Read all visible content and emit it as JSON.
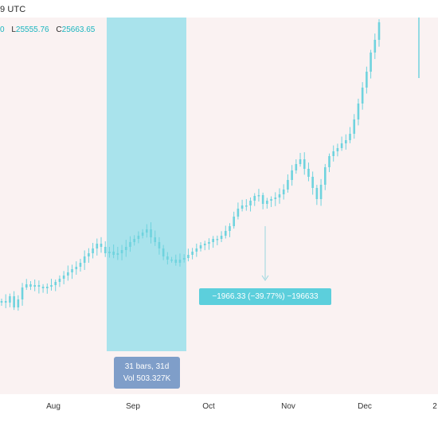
{
  "header": {
    "time_fragment": "9 UTC",
    "ohlc": [
      {
        "key": "",
        "value": "0"
      },
      {
        "key": "L",
        "value": "25555.76"
      },
      {
        "key": "C",
        "value": "25663.65"
      }
    ]
  },
  "tool": {
    "measure_label": "−1966.33 (−39.77%) −196633",
    "range_bars": "31 bars, 31d",
    "range_vol": "Vol 503.327K"
  },
  "colors": {
    "accent": "#1ab5bf",
    "candle": "#6fd3de",
    "selection": "#a9e3ec",
    "background": "#faf2f2"
  },
  "xaxis": {
    "labels": [
      "Aug",
      "Sep",
      "Oct",
      "Nov",
      "Dec",
      "2"
    ]
  },
  "chart_data": {
    "type": "candlestick",
    "x_labels": [
      "Aug",
      "Sep",
      "Oct",
      "Nov",
      "Dec",
      "2"
    ],
    "close_trend": [
      378,
      380,
      372,
      386,
      376,
      361,
      357,
      360,
      358,
      360,
      362,
      360,
      358,
      354,
      350,
      346,
      342,
      338,
      335,
      330,
      322,
      318,
      312,
      306,
      310,
      318,
      316,
      320,
      318,
      314,
      310,
      304,
      300,
      296,
      292,
      288,
      298,
      304,
      312,
      322,
      326,
      326,
      330,
      326,
      324,
      320,
      316,
      312,
      308,
      306,
      304,
      300,
      300,
      296,
      290,
      284,
      272,
      262,
      258,
      258,
      252,
      246,
      245,
      256,
      252,
      250,
      248,
      244,
      238,
      226,
      214,
      206,
      200,
      212,
      222,
      236,
      250,
      232,
      210,
      196,
      190,
      186,
      180,
      176,
      168,
      150,
      130,
      110,
      90,
      66,
      50,
      28
    ]
  }
}
